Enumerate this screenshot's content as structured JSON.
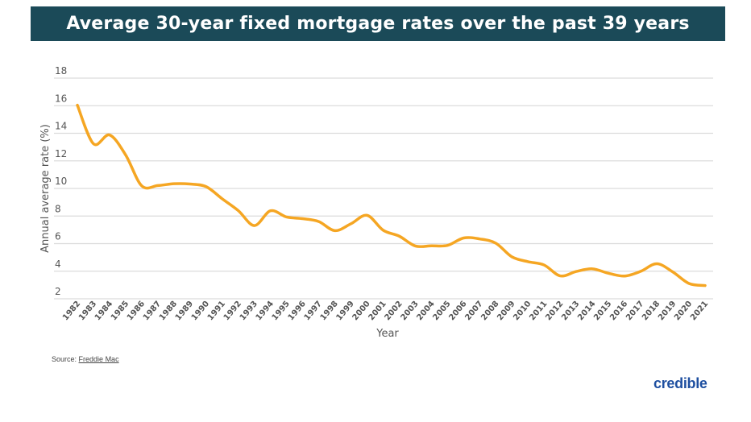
{
  "chart_data": {
    "type": "line",
    "title": "Average 30-year fixed mortgage rates over the past 39 years",
    "xlabel": "Year",
    "ylabel": "Annual average rate (%)",
    "ylim": [
      2,
      18
    ],
    "yticks": [
      2,
      4,
      6,
      8,
      10,
      12,
      14,
      16,
      18
    ],
    "grid": true,
    "line_color": "#f5a623",
    "categories": [
      "1982",
      "1983",
      "1984",
      "1985",
      "1986",
      "1987",
      "1988",
      "1989",
      "1990",
      "1991",
      "1992",
      "1993",
      "1994",
      "1995",
      "1996",
      "1997",
      "1998",
      "1999",
      "2000",
      "2001",
      "2002",
      "2003",
      "2004",
      "2005",
      "2006",
      "2007",
      "2008",
      "2009",
      "2010",
      "2011",
      "2012",
      "2013",
      "2014",
      "2015",
      "2016",
      "2017",
      "2018",
      "2019",
      "2020",
      "2021"
    ],
    "values": [
      16.04,
      13.24,
      13.88,
      12.43,
      10.19,
      10.21,
      10.34,
      10.32,
      10.13,
      9.25,
      8.39,
      7.31,
      8.38,
      7.93,
      7.81,
      7.6,
      6.94,
      7.44,
      8.05,
      6.97,
      6.54,
      5.83,
      5.84,
      5.87,
      6.41,
      6.34,
      6.03,
      5.04,
      4.69,
      4.45,
      3.66,
      3.98,
      4.17,
      3.85,
      3.65,
      3.99,
      4.54,
      3.94,
      3.11,
      2.96
    ]
  },
  "source": {
    "label": "Source:",
    "link": "Freddie Mac"
  },
  "brand": {
    "logo_text": "credible",
    "color": "#1e4fa0"
  },
  "title_bar_color": "#1b4a58"
}
